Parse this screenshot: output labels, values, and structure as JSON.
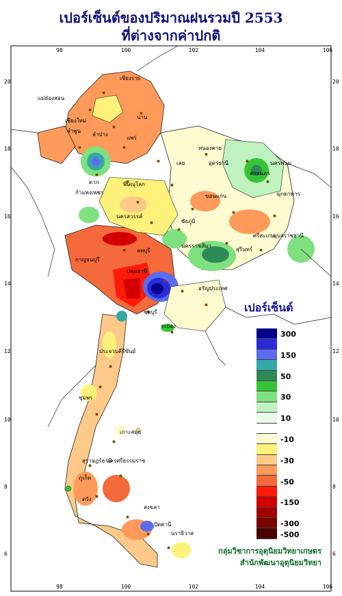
{
  "title_line1": "เปอร์เซ็นต์ของปริมาณฝนรวมปี 2553",
  "title_line2": "ที่ต่างจากค่าปกติ",
  "legend": {
    "title": "เปอร์เซ็นต์",
    "classes": [
      {
        "label": "300",
        "color": "#00008b"
      },
      {
        "label": "",
        "color": "#2a2ad8"
      },
      {
        "label": "150",
        "color": "#5b6cf0"
      },
      {
        "label": "",
        "color": "#35a7a7"
      },
      {
        "label": "50",
        "color": "#2e8b57"
      },
      {
        "label": "",
        "color": "#36c436"
      },
      {
        "label": "30",
        "color": "#7ee07e"
      },
      {
        "label": "",
        "color": "#bff2bf"
      },
      {
        "label": "10",
        "color": "#e8fbe8"
      },
      {
        "label": "",
        "color": "#ffffff"
      },
      {
        "label": "-10",
        "color": "#fffbd0"
      },
      {
        "label": "",
        "color": "#fff27a"
      },
      {
        "label": "-30",
        "color": "#ffc98a"
      },
      {
        "label": "",
        "color": "#ff9a5a"
      },
      {
        "label": "-50",
        "color": "#f46a3a"
      },
      {
        "label": "",
        "color": "#ff1a0a"
      },
      {
        "label": "-150",
        "color": "#d40000"
      },
      {
        "label": "",
        "color": "#a30000"
      },
      {
        "label": "-300",
        "color": "#7a0000"
      },
      {
        "label": "-500",
        "color": "#4d0000"
      }
    ]
  },
  "axes": {
    "lon_ticks": [
      "98",
      "100",
      "102",
      "104",
      "106"
    ],
    "lat_ticks": [
      "20",
      "18",
      "16",
      "14",
      "12",
      "10",
      "8",
      "6"
    ]
  },
  "place_labels": [
    "เชียงราย",
    "แม่ฮ่องสอน",
    "เชียงใหม่",
    "น่าน",
    "ลำพูน",
    "ลำปาง",
    "แพร่",
    "ตาก",
    "หนองคาย",
    "อุดรธานี",
    "นครพนม",
    "สกลนคร",
    "เลย",
    "พิษณุโลก",
    "มุกดาหาร",
    "ขอนแก่น",
    "กำแพงเพชร",
    "นครสวรรค์",
    "ชัยภูมิ",
    "อุบลราชธานี",
    "นครราชสีมา",
    "สุรินทร์",
    "ลพบุรี",
    "กาญจนบุรี",
    "ศรีสะเกษ",
    "ปทุมธานี",
    "อรัญประเทศ",
    "ชลบุรี",
    "ระยอง",
    "ประจวบคีรีขันธ์",
    "ชุมพร",
    "เกาะสมุย",
    "สุราษฎร์ธานี",
    "นครศรีธรรมราช",
    "ภูเก็ต",
    "ตรัง",
    "สงขลา",
    "ปัตตานี",
    "นราธิวาส"
  ],
  "credit_line1": "กลุ่มวิชาการอุตุนิยมวิทยาเกษตร",
  "credit_line2": "สำนักพัฒนาอุตุนิยมวิทยา"
}
